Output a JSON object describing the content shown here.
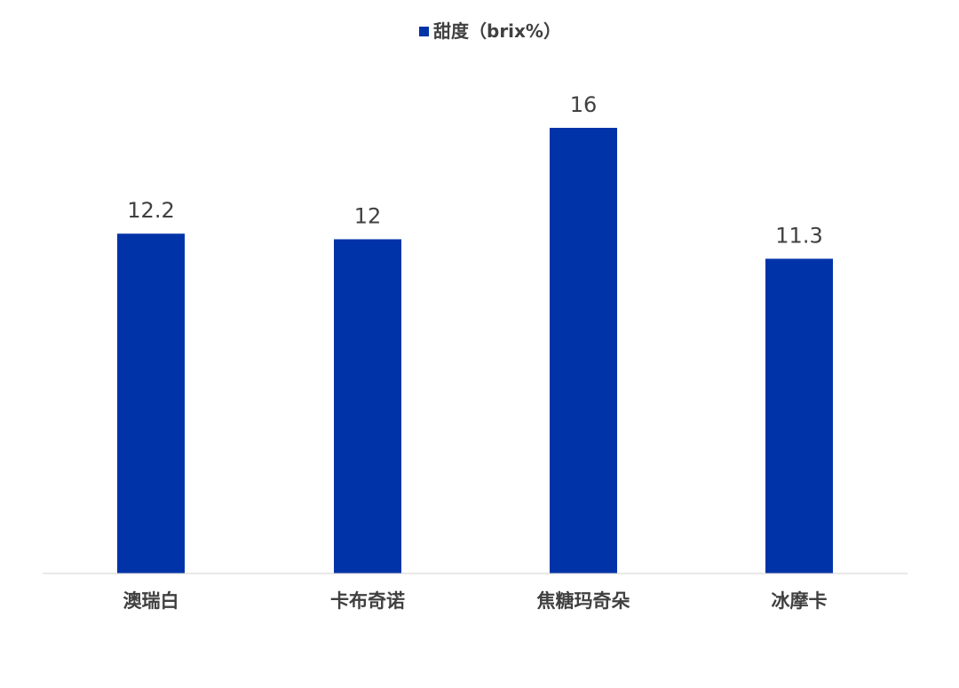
{
  "chart_data": {
    "type": "bar",
    "categories": [
      "澳瑞白",
      "卡布奇诺",
      "焦糖玛奇朵",
      "冰摩卡"
    ],
    "series": [
      {
        "name": "甜度（brix%）",
        "values": [
          12.2,
          12,
          16,
          11.3
        ],
        "data_labels": [
          "12.2",
          "12",
          "16",
          "11.3"
        ]
      }
    ],
    "ylim": [
      0,
      17
    ],
    "legend_position": "top-center",
    "grid": false,
    "colors": {
      "bar": "#0033A8",
      "axis": "#D0D0D0",
      "text": "#404040"
    }
  }
}
